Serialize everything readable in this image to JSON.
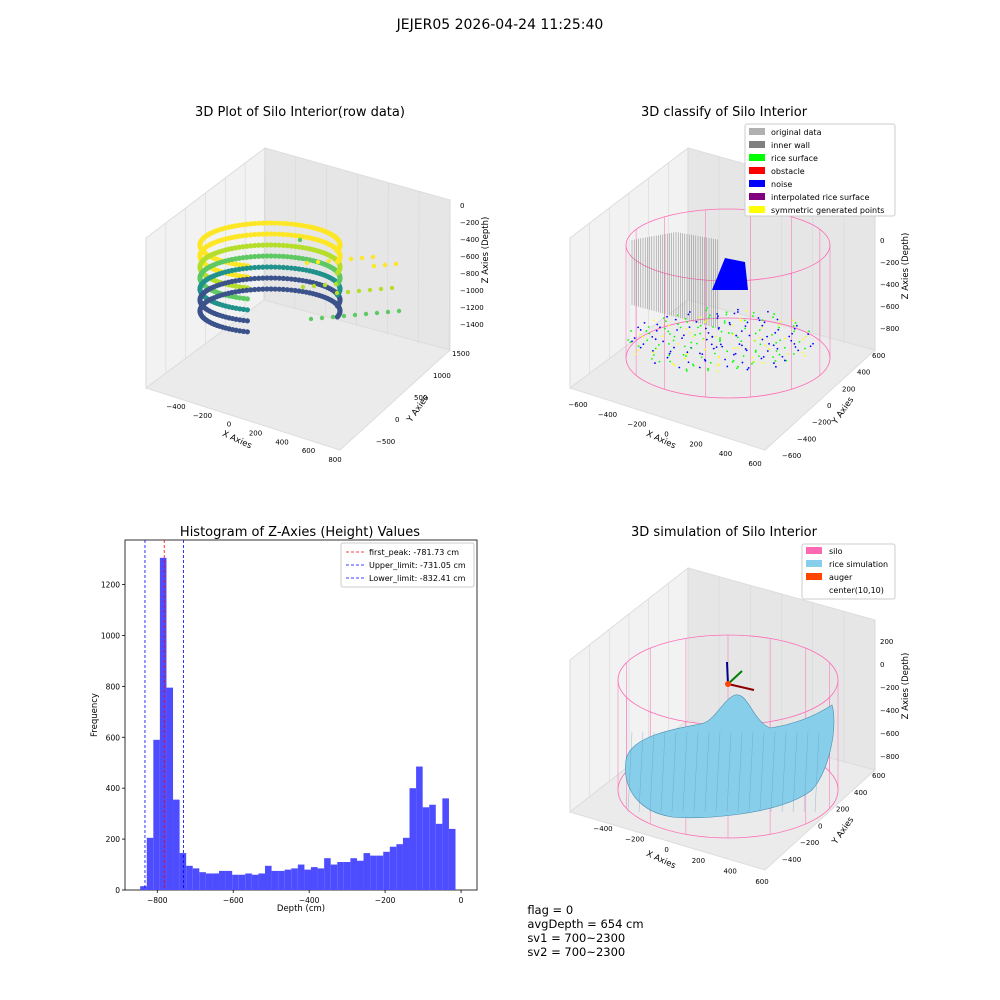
{
  "figure": {
    "suptitle": "JEJER05 2026-04-24 11:25:40"
  },
  "status": {
    "flag": "flag = 0",
    "avg_depth": "avgDepth = 654 cm",
    "sv1": "sv1 = 700~2300",
    "sv2": "sv2 = 700~2300"
  },
  "colors": {
    "histogram_bar": "#4d4dff",
    "first_peak_line": "#ff0000",
    "limit_line": "#0000ff",
    "original_data": "#b0b0b0",
    "inner_wall": "#808080",
    "rice_surface": "#00ff00",
    "obstacle": "#ff0000",
    "noise": "#0000ff",
    "interpolated_rice_surface": "#800080",
    "symmetric_generated_points": "#ffff00",
    "silo": "#ff69b4",
    "rice_simulation": "#87ceeb",
    "auger": "#ff4500"
  },
  "chart_data": [
    {
      "type": "scatter3d",
      "title": "3D Plot of Silo Interior(row data)",
      "xlabel": "X Axies",
      "ylabel": "Y Axies",
      "zlabel": "Z Axies (Depth)",
      "x_ticks": [
        "−400",
        "−200",
        "0",
        "200",
        "400",
        "600",
        "800"
      ],
      "y_ticks": [
        "−500",
        "0",
        "500",
        "1000",
        "1500"
      ],
      "z_ticks": [
        "0",
        "−200",
        "−400",
        "−600",
        "−800",
        "−1000",
        "−1200",
        "−1400"
      ],
      "colormap": "viridis"
    },
    {
      "type": "scatter3d",
      "title": "3D classify of Silo Interior",
      "xlabel": "X Axies",
      "ylabel": "Y Axies",
      "zlabel": "Z Axies (Depth)",
      "x_ticks": [
        "−600",
        "−400",
        "−200",
        "0",
        "200",
        "400",
        "600"
      ],
      "y_ticks": [
        "−600",
        "−400",
        "−200",
        "0",
        "200",
        "400",
        "600"
      ],
      "z_ticks": [
        "0",
        "−200",
        "−400",
        "−600",
        "−800"
      ],
      "legend": [
        {
          "label": "original data",
          "color": "#b0b0b0"
        },
        {
          "label": "inner wall",
          "color": "#808080"
        },
        {
          "label": "rice surface",
          "color": "#00ff00"
        },
        {
          "label": "obstacle",
          "color": "#ff0000"
        },
        {
          "label": "noise",
          "color": "#0000ff"
        },
        {
          "label": "interpolated rice surface",
          "color": "#800080"
        },
        {
          "label": "symmetric generated points",
          "color": "#ffff00"
        }
      ]
    },
    {
      "type": "bar",
      "title": "Histogram of Z-Axies (Height) Values",
      "xlabel": "Depth (cm)",
      "ylabel": "Frequency",
      "xlim": [
        -885,
        42
      ],
      "ylim": [
        0,
        1375
      ],
      "x_ticks": [
        -800,
        -600,
        -400,
        -200,
        0
      ],
      "y_ticks": [
        0,
        200,
        400,
        600,
        800,
        1000,
        1200
      ],
      "bin_width": 17.3,
      "bin_start": -845,
      "values": [
        15,
        205,
        590,
        1305,
        795,
        355,
        145,
        95,
        85,
        70,
        65,
        65,
        75,
        75,
        60,
        60,
        65,
        60,
        65,
        95,
        75,
        75,
        80,
        85,
        100,
        80,
        90,
        85,
        125,
        100,
        110,
        110,
        125,
        115,
        145,
        135,
        135,
        150,
        170,
        180,
        205,
        400,
        485,
        325,
        335,
        260,
        360,
        240
      ],
      "vlines": [
        {
          "label": "first_peak: -781.73 cm",
          "x": -781.73,
          "color": "#ff0000"
        },
        {
          "label": "Upper_limit: -731.05 cm",
          "x": -731.05,
          "color": "#0000ff"
        },
        {
          "label": "Lower_limit: -832.41 cm",
          "x": -832.41,
          "color": "#0000ff"
        }
      ],
      "legend_position": "upper right"
    },
    {
      "type": "surface3d",
      "title": "3D simulation of Silo Interior",
      "xlabel": "X Axies",
      "ylabel": "Y Axies",
      "zlabel": "Z Axies (Depth)",
      "x_ticks": [
        "−400",
        "−200",
        "0",
        "200",
        "400",
        "600"
      ],
      "y_ticks": [
        "−400",
        "−200",
        "0",
        "200",
        "400",
        "600"
      ],
      "z_ticks": [
        "200",
        "0",
        "−200",
        "−400",
        "−600",
        "−800"
      ],
      "legend": [
        {
          "label": "silo",
          "color": "#ff69b4"
        },
        {
          "label": "rice simulation",
          "color": "#87ceeb"
        },
        {
          "label": "auger",
          "color": "#ff4500"
        },
        {
          "label": "center(10,10)",
          "color": ""
        }
      ]
    }
  ]
}
